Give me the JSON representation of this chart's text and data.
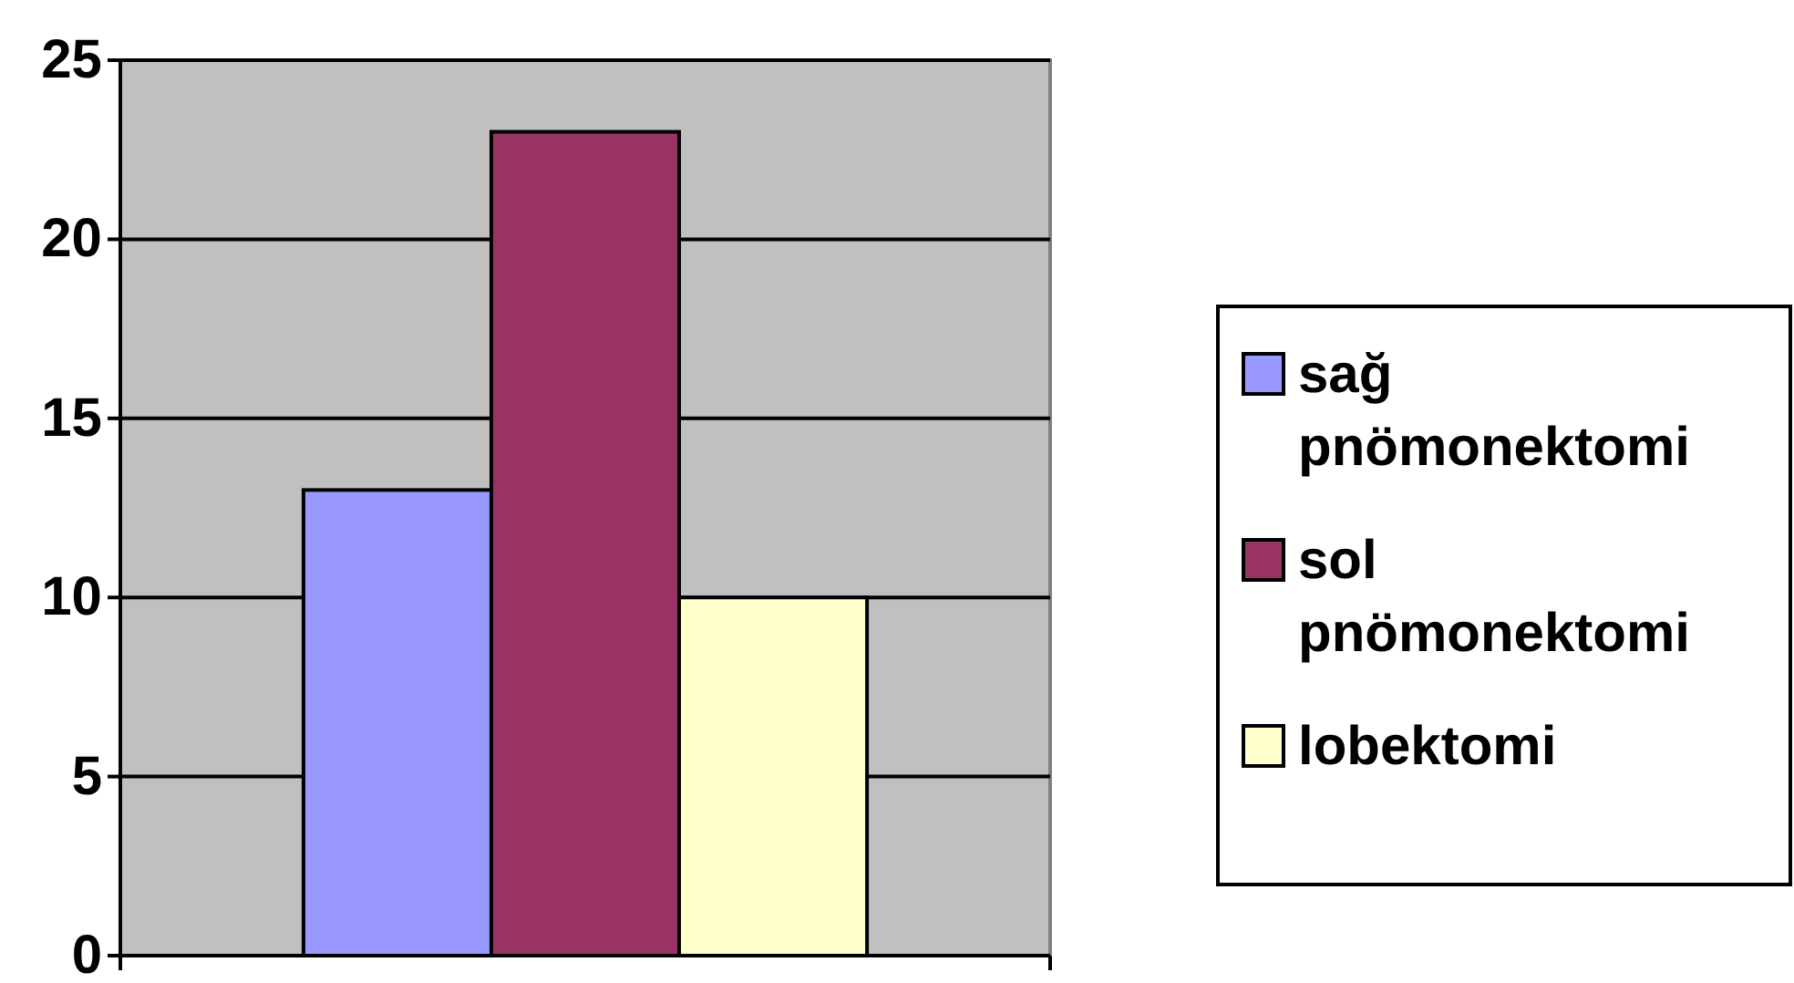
{
  "chart_data": {
    "type": "bar",
    "categories": [
      null
    ],
    "series": [
      {
        "name": "sağ pnömonektomi",
        "color": "#9999ff",
        "values": [
          13
        ]
      },
      {
        "name": "sol pnömonektomi",
        "color": "#993366",
        "values": [
          23
        ]
      },
      {
        "name": "lobektomi",
        "color": "#ffffcc",
        "values": [
          10
        ]
      }
    ],
    "ylim": [
      0,
      25
    ],
    "yticks": [
      0,
      5,
      10,
      15,
      20,
      25
    ],
    "grid": "y",
    "legend": "right"
  }
}
